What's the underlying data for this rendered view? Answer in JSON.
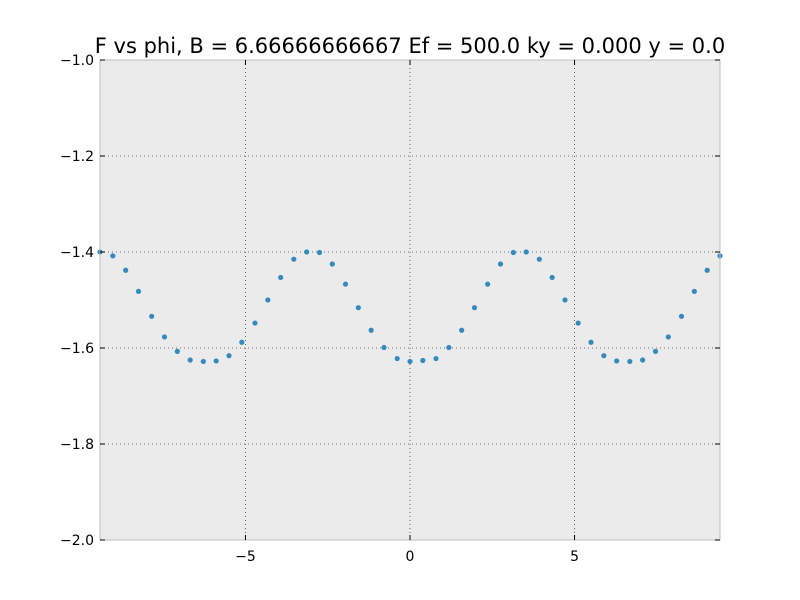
{
  "chart_data": {
    "type": "scatter",
    "title": "F vs phi, B = 6.66666666667 Ef = 500.0 ky = 0.000 y = 0.0",
    "xlabel": "",
    "ylabel": "",
    "xlim": [
      -9.42,
      9.42
    ],
    "ylim": [
      -2.0,
      -1.0
    ],
    "grid": true,
    "x_ticks": [
      -5,
      0,
      5
    ],
    "x_tick_labels": [
      "−5",
      "0",
      "5"
    ],
    "y_ticks": [
      -1.0,
      -1.2,
      -1.4,
      -1.6,
      -1.8,
      -2.0
    ],
    "y_tick_labels": [
      "−1.0",
      "−1.2",
      "−1.4",
      "−1.6",
      "−1.8",
      "−2.0"
    ],
    "marker_color": "#348ABD",
    "background_color": "#EBEBEB",
    "series": [
      {
        "x": [
          -9.42,
          -9.03,
          -8.64,
          -8.25,
          -7.85,
          -7.46,
          -7.07,
          -6.68,
          -6.28,
          -5.89,
          -5.5,
          -5.11,
          -4.71,
          -4.32,
          -3.93,
          -3.53,
          -3.14,
          -2.75,
          -2.36,
          -1.96,
          -1.57,
          -1.18,
          -0.79,
          -0.39,
          0.0,
          0.39,
          0.79,
          1.18,
          1.57,
          1.96,
          2.36,
          2.75,
          3.14,
          3.53,
          3.93,
          4.32,
          4.71,
          5.11,
          5.5,
          5.89,
          6.28,
          6.68,
          7.07,
          7.46,
          7.85,
          8.25,
          8.64,
          9.03,
          9.42
        ],
        "y": [
          -1.4,
          -1.408,
          -1.438,
          -1.482,
          -1.534,
          -1.577,
          -1.607,
          -1.625,
          -1.628,
          -1.627,
          -1.616,
          -1.588,
          -1.548,
          -1.5,
          -1.453,
          -1.415,
          -1.4,
          -1.401,
          -1.425,
          -1.467,
          -1.516,
          -1.563,
          -1.599,
          -1.622,
          -1.628,
          -1.626,
          -1.622,
          -1.599,
          -1.563,
          -1.516,
          -1.467,
          -1.425,
          -1.401,
          -1.4,
          -1.415,
          -1.453,
          -1.5,
          -1.548,
          -1.588,
          -1.616,
          -1.627,
          -1.628,
          -1.625,
          -1.607,
          -1.577,
          -1.534,
          -1.482,
          -1.438,
          -1.408
        ]
      }
    ]
  }
}
